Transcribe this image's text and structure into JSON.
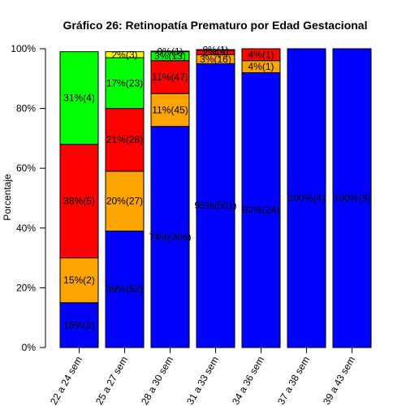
{
  "chart_data": {
    "type": "bar",
    "stacked": true,
    "title": "Gráfico 26: Retinopatía Prematuro por Edad Gestacional",
    "ylabel": "Porcentaje",
    "xlabel": "",
    "ylim": [
      0,
      100
    ],
    "yticks": [
      "0%",
      "20%",
      "40%",
      "60%",
      "80%",
      "100%"
    ],
    "categories": [
      "22 a 24 sem",
      "25 a 27 sem",
      "28 a 30 sem",
      "31 a 33 sem",
      "34 a 36 sem",
      "37 a 38 sem",
      "39 a 43 sem"
    ],
    "series": [
      {
        "color": "#0000ff",
        "values": [
          15,
          39,
          74,
          95,
          92,
          100,
          100
        ],
        "labels": [
          "15%(2)",
          "39%(52)",
          "74%(306)",
          "95%(501)",
          "92%(24)",
          "100%(4)",
          "100%(3)"
        ]
      },
      {
        "color": "#ffa500",
        "values": [
          15,
          20,
          11,
          3,
          4,
          0,
          0
        ],
        "labels": [
          "15%(2)",
          "20%(27)",
          "11%(45)",
          "3%(16)",
          "4%(1)",
          "",
          ""
        ]
      },
      {
        "color": "#ff0000",
        "values": [
          38,
          21,
          11,
          1.5,
          4,
          0,
          0
        ],
        "labels": [
          "38%(5)",
          "21%(28)",
          "11%(47)",
          "2%(9)",
          "4%(1)",
          "",
          ""
        ]
      },
      {
        "color": "#00ff00",
        "values": [
          31,
          17,
          3,
          0.2,
          0,
          0,
          0
        ],
        "labels": [
          "31%(4)",
          "17%(23)",
          "3%(13)",
          "0%(1)",
          "",
          "",
          ""
        ]
      },
      {
        "color": "#ffff00",
        "values": [
          0,
          2,
          0.2,
          0,
          0,
          0,
          0
        ],
        "labels": [
          "",
          "2%(3)",
          "0%(1)",
          "",
          "",
          "",
          ""
        ]
      }
    ]
  }
}
